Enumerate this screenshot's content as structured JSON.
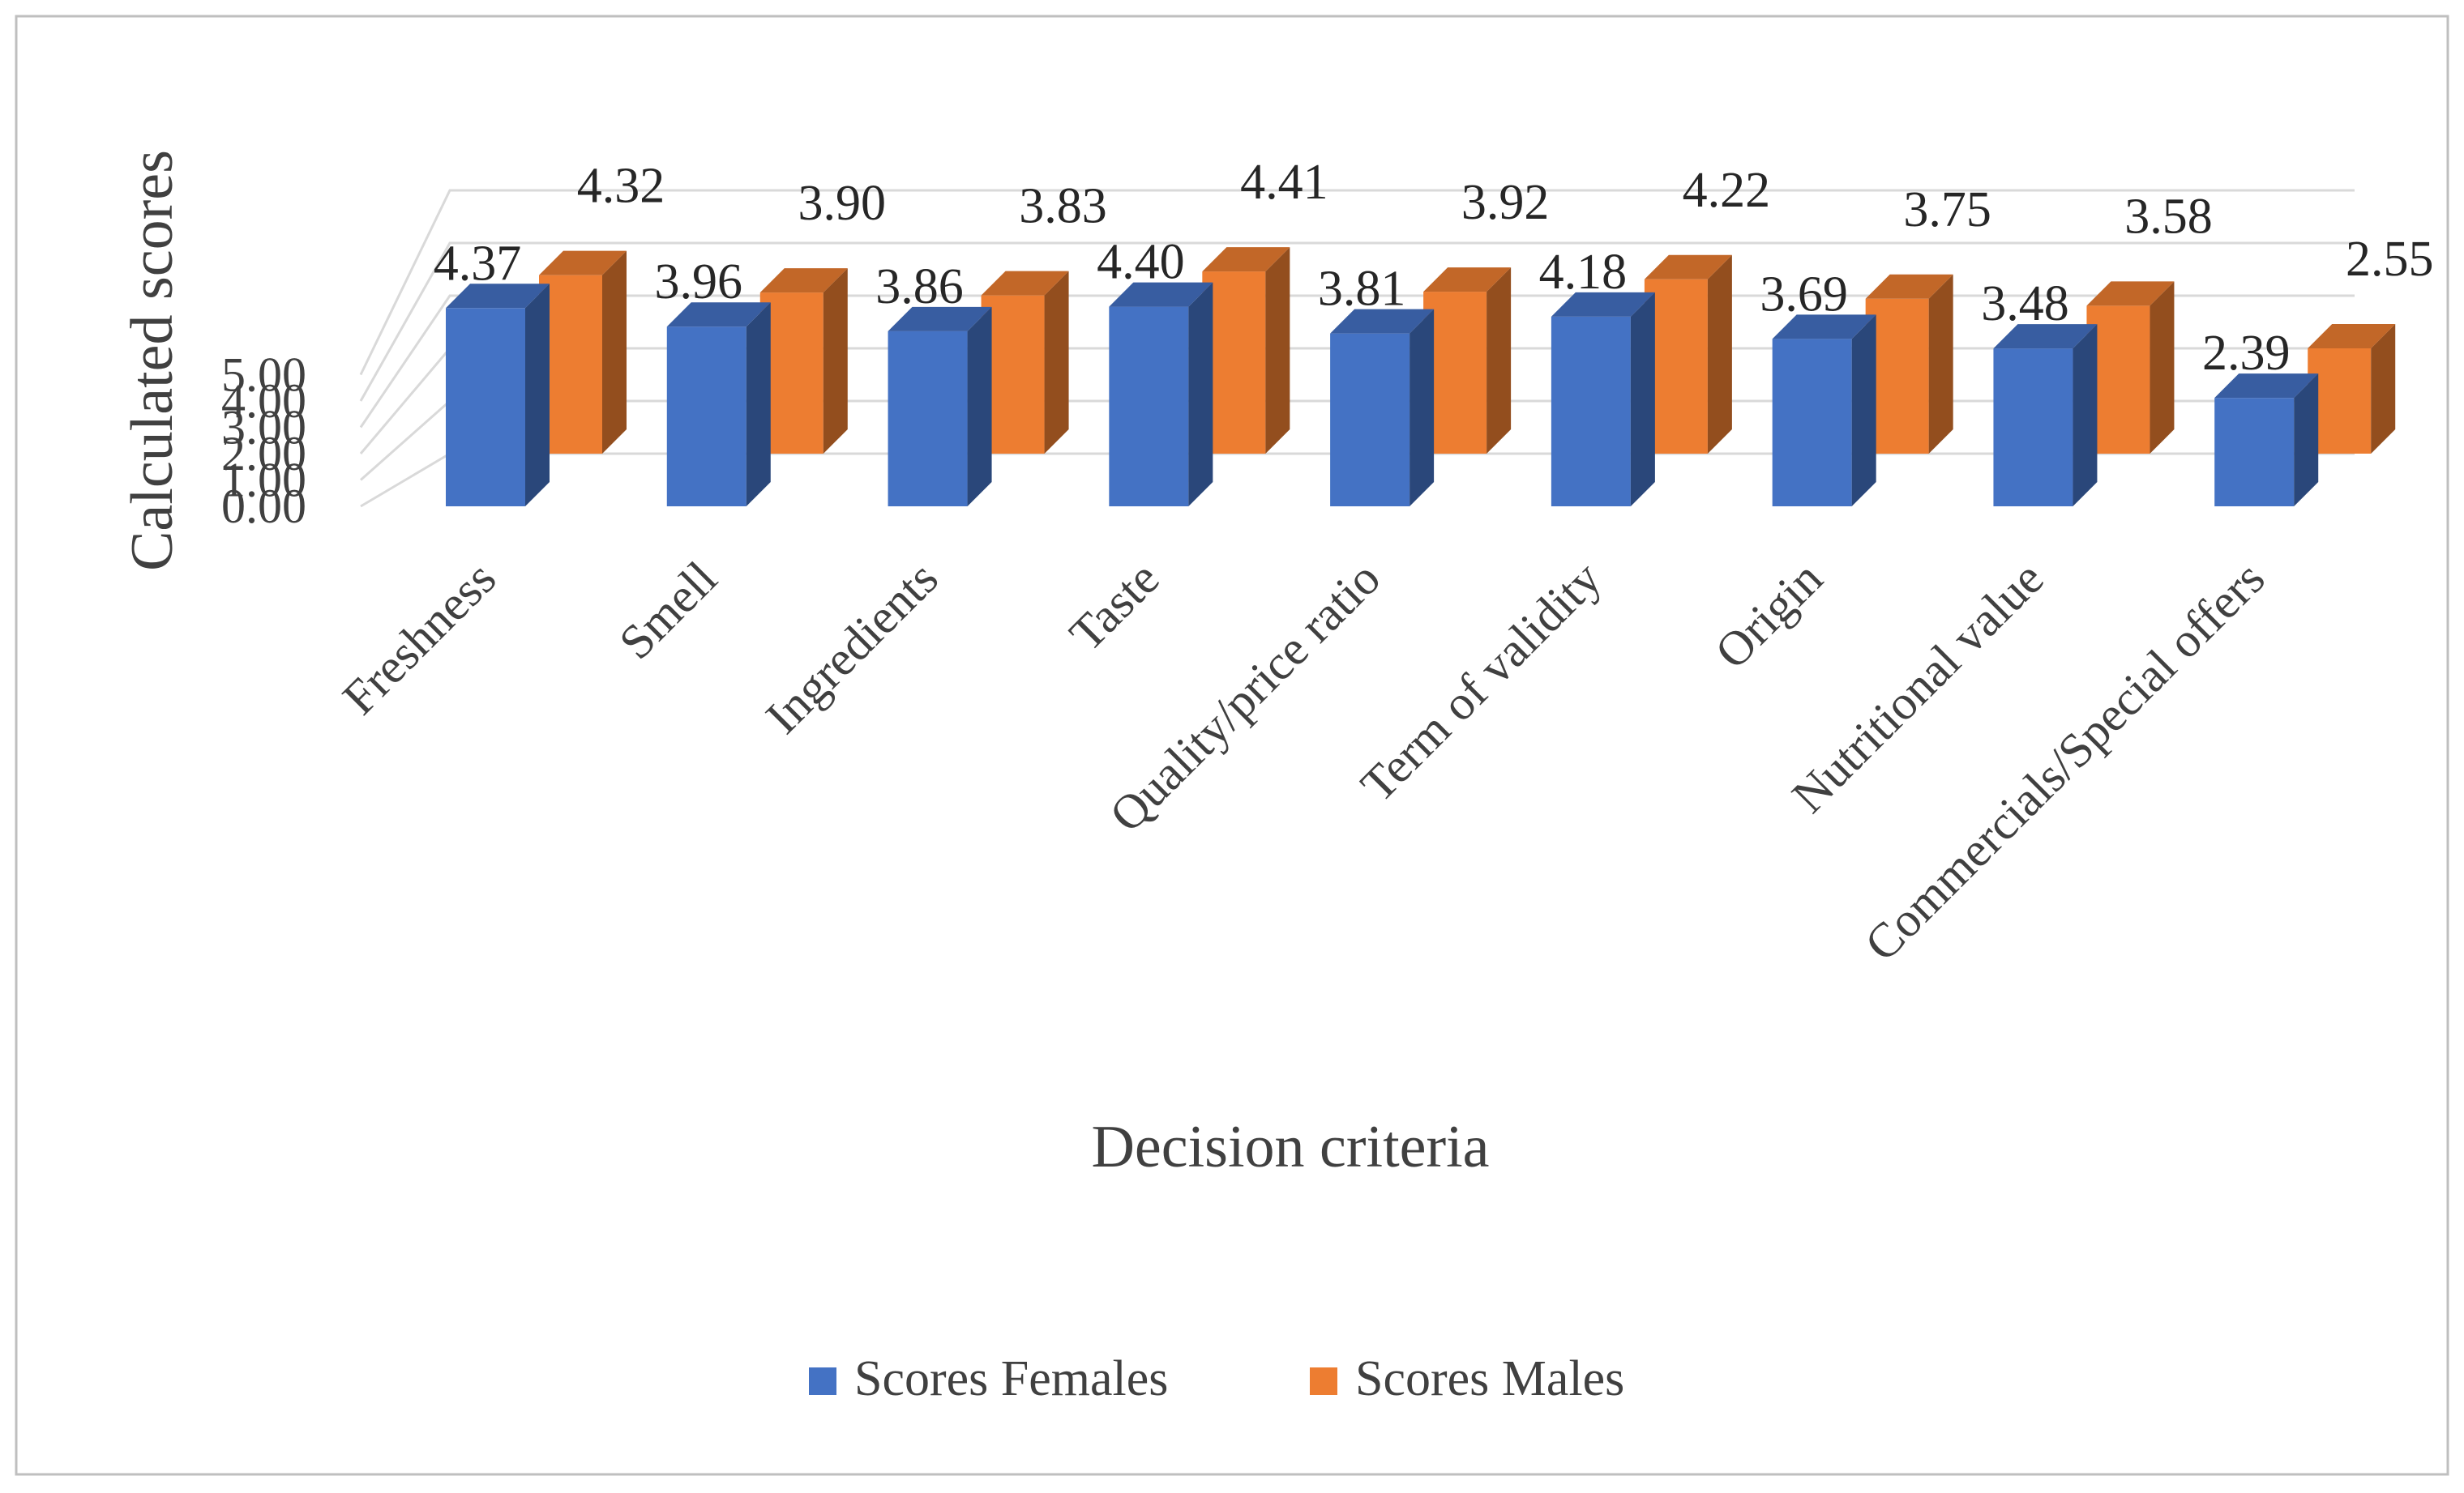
{
  "chart_data": {
    "type": "bar",
    "title": "",
    "xlabel": "Decision criteria",
    "ylabel": "Calculated scores",
    "ylim": [
      0,
      5
    ],
    "yticks": [
      "0.00",
      "1.00",
      "2.00",
      "3.00",
      "4.00",
      "5.00"
    ],
    "grid": true,
    "legend": "bottom",
    "categories": [
      "Freshness",
      "Smell",
      "Ingredients",
      "Taste",
      "Quality/price ratio",
      "Term of validity",
      "Origin",
      "Nutritional value",
      "Commercials/Special offers"
    ],
    "series": [
      {
        "name": "Scores Females",
        "color": "#4472C4",
        "values": [
          4.37,
          3.96,
          3.86,
          4.4,
          3.81,
          4.18,
          3.69,
          3.48,
          2.39
        ],
        "labels": [
          "4.37",
          "3.96",
          "3.86",
          "4.40",
          "3.81",
          "4.18",
          "3.69",
          "3.48",
          "2.39"
        ]
      },
      {
        "name": "Scores Males",
        "color": "#ED7D31",
        "values": [
          4.32,
          3.9,
          3.83,
          4.41,
          3.92,
          4.22,
          3.75,
          3.58,
          2.55
        ],
        "labels": [
          "4.32",
          "3.90",
          "3.83",
          "4.41",
          "3.92",
          "4.22",
          "3.75",
          "3.58",
          "2.55"
        ]
      }
    ]
  }
}
